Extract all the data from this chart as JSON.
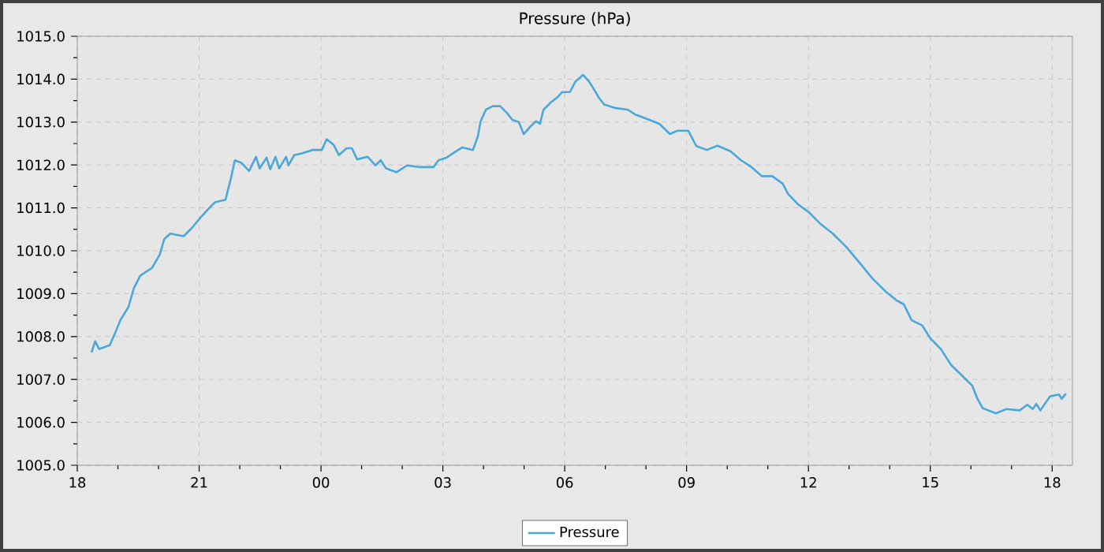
{
  "chart_data": {
    "type": "line",
    "title": "Pressure (hPa)",
    "xlim": [
      18,
      42.5
    ],
    "xticks": [
      {
        "value": 18,
        "label": "18"
      },
      {
        "value": 21,
        "label": "21"
      },
      {
        "value": 24,
        "label": "00"
      },
      {
        "value": 27,
        "label": "03"
      },
      {
        "value": 30,
        "label": "06"
      },
      {
        "value": 33,
        "label": "09"
      },
      {
        "value": 36,
        "label": "12"
      },
      {
        "value": 39,
        "label": "15"
      },
      {
        "value": 42,
        "label": "18"
      }
    ],
    "ylim": [
      1005,
      1015
    ],
    "yticks": [
      {
        "value": 1005,
        "label": "1005.0"
      },
      {
        "value": 1006,
        "label": "1006.0"
      },
      {
        "value": 1007,
        "label": "1007.0"
      },
      {
        "value": 1008,
        "label": "1008.0"
      },
      {
        "value": 1009,
        "label": "1009.0"
      },
      {
        "value": 1010,
        "label": "1010.0"
      },
      {
        "value": 1011,
        "label": "1011.0"
      },
      {
        "value": 1012,
        "label": "1012.0"
      },
      {
        "value": 1013,
        "label": "1013.0"
      },
      {
        "value": 1014,
        "label": "1014.0"
      },
      {
        "value": 1015,
        "label": "1015.0"
      }
    ],
    "grid": true,
    "legend": "bottom",
    "marker": "none",
    "line_style": "solid",
    "series": [
      {
        "name": "Pressure",
        "color": "#4aa8d8",
        "x": [
          18.35,
          18.44,
          18.54,
          18.8,
          18.93,
          19.06,
          19.26,
          19.39,
          19.55,
          19.84,
          20.03,
          20.14,
          20.29,
          20.62,
          20.81,
          21.03,
          21.26,
          21.39,
          21.65,
          21.78,
          21.88,
          22.04,
          22.23,
          22.4,
          22.49,
          22.66,
          22.75,
          22.88,
          22.97,
          23.14,
          23.2,
          23.34,
          23.53,
          23.79,
          24.02,
          24.14,
          24.31,
          24.44,
          24.63,
          24.76,
          24.89,
          25.15,
          25.34,
          25.47,
          25.6,
          25.86,
          26.12,
          26.44,
          26.77,
          26.89,
          27.09,
          27.28,
          27.48,
          27.74,
          27.86,
          27.93,
          28.06,
          28.23,
          28.41,
          28.58,
          28.71,
          28.87,
          28.99,
          29.16,
          29.29,
          29.39,
          29.48,
          29.65,
          29.81,
          29.94,
          30.13,
          30.26,
          30.45,
          30.58,
          30.71,
          30.84,
          30.97,
          31.23,
          31.55,
          31.75,
          32.01,
          32.33,
          32.59,
          32.78,
          33.04,
          33.24,
          33.5,
          33.76,
          34.08,
          34.34,
          34.6,
          34.85,
          35.11,
          35.37,
          35.5,
          35.76,
          36.02,
          36.28,
          36.6,
          36.93,
          37.25,
          37.57,
          37.9,
          38.16,
          38.35,
          38.54,
          38.8,
          39.0,
          39.26,
          39.51,
          39.77,
          40.03,
          40.16,
          40.29,
          40.62,
          40.87,
          41.2,
          41.39,
          41.52,
          41.61,
          41.71,
          41.95,
          42.17,
          42.23,
          42.34
        ],
        "values": [
          1007.63,
          1007.89,
          1007.71,
          1007.8,
          1008.08,
          1008.38,
          1008.69,
          1009.12,
          1009.42,
          1009.6,
          1009.91,
          1010.27,
          1010.4,
          1010.34,
          1010.52,
          1010.77,
          1011.01,
          1011.13,
          1011.19,
          1011.68,
          1012.11,
          1012.05,
          1011.86,
          1012.19,
          1011.92,
          1012.17,
          1011.9,
          1012.19,
          1011.92,
          1012.19,
          1011.99,
          1012.23,
          1012.27,
          1012.35,
          1012.35,
          1012.6,
          1012.47,
          1012.23,
          1012.39,
          1012.39,
          1012.13,
          1012.19,
          1011.99,
          1012.11,
          1011.92,
          1011.83,
          1011.99,
          1011.95,
          1011.95,
          1012.11,
          1012.17,
          1012.29,
          1012.41,
          1012.35,
          1012.66,
          1013.02,
          1013.29,
          1013.37,
          1013.37,
          1013.21,
          1013.05,
          1013.0,
          1012.72,
          1012.9,
          1013.02,
          1012.96,
          1013.29,
          1013.45,
          1013.57,
          1013.7,
          1013.7,
          1013.94,
          1014.1,
          1013.97,
          1013.78,
          1013.57,
          1013.41,
          1013.33,
          1013.29,
          1013.17,
          1013.08,
          1012.96,
          1012.72,
          1012.8,
          1012.8,
          1012.44,
          1012.35,
          1012.45,
          1012.32,
          1012.11,
          1011.95,
          1011.74,
          1011.74,
          1011.56,
          1011.32,
          1011.07,
          1010.89,
          1010.64,
          1010.4,
          1010.09,
          1009.73,
          1009.36,
          1009.05,
          1008.85,
          1008.75,
          1008.38,
          1008.26,
          1007.96,
          1007.71,
          1007.34,
          1007.1,
          1006.86,
          1006.55,
          1006.33,
          1006.21,
          1006.31,
          1006.28,
          1006.41,
          1006.31,
          1006.43,
          1006.28,
          1006.61,
          1006.65,
          1006.55,
          1006.67
        ]
      }
    ]
  }
}
